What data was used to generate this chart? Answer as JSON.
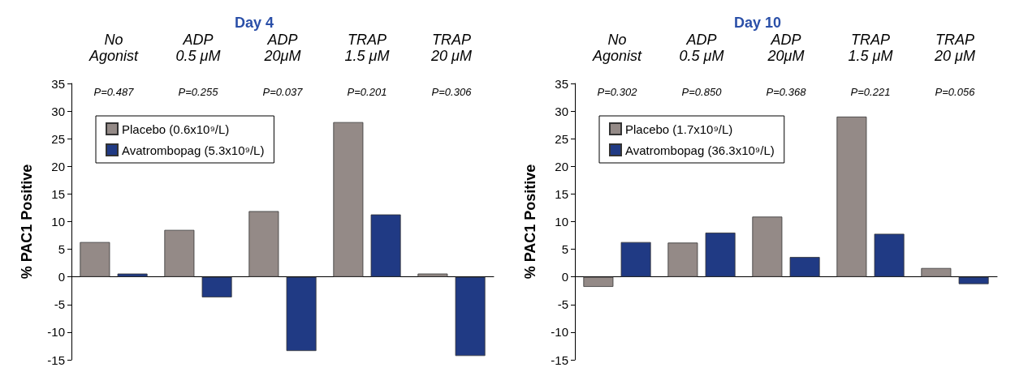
{
  "chart_data": [
    {
      "type": "bar",
      "title": "Day 4",
      "ylabel": "% PAC1 Positive",
      "categories": [
        "No Agonist",
        "ADP 0.5 μM",
        "ADP 20μM",
        "TRAP 1.5 μM",
        "TRAP 20 μM"
      ],
      "series": [
        {
          "name": "Placebo (0.6x10⁹/L)",
          "color": "#948a87",
          "values": [
            6.3,
            8.5,
            11.9,
            28,
            0.6
          ]
        },
        {
          "name": "Avatrombopag (5.3x10⁹/L)",
          "color": "#203a84",
          "values": [
            0.6,
            -3.7,
            -13.4,
            11.3,
            -14.3
          ]
        }
      ],
      "ylim": [
        -15,
        35
      ],
      "yticks": [
        -15,
        -10,
        -5,
        0,
        5,
        10,
        15,
        20,
        25,
        30,
        35
      ],
      "legend": "top left",
      "annotations": [
        "P=0.487",
        "P=0.255",
        "P=0.037",
        "P=0.201",
        "P=0.306"
      ]
    },
    {
      "type": "bar",
      "title": "Day 10",
      "ylabel": "% PAC1 Positive",
      "categories": [
        "No Agonist",
        "ADP 0.5 μM",
        "ADP 20μM",
        "TRAP 1.5 μM",
        "TRAP 20 μM"
      ],
      "series": [
        {
          "name": "Placebo (1.7x10⁹/L)",
          "color": "#948a87",
          "values": [
            -1.8,
            6.2,
            10.9,
            29,
            1.6
          ]
        },
        {
          "name": "Avatrombopag (36.3x10⁹/L)",
          "color": "#203a84",
          "values": [
            6.3,
            8.0,
            3.6,
            7.8,
            -1.3
          ]
        }
      ],
      "ylim": [
        -15,
        35
      ],
      "yticks": [
        -15,
        -10,
        -5,
        0,
        5,
        10,
        15,
        20,
        25,
        30,
        35
      ],
      "legend": "top left",
      "annotations": [
        "P=0.302",
        "P=0.850",
        "P=0.368",
        "P=0.221",
        "P=0.056"
      ]
    }
  ]
}
